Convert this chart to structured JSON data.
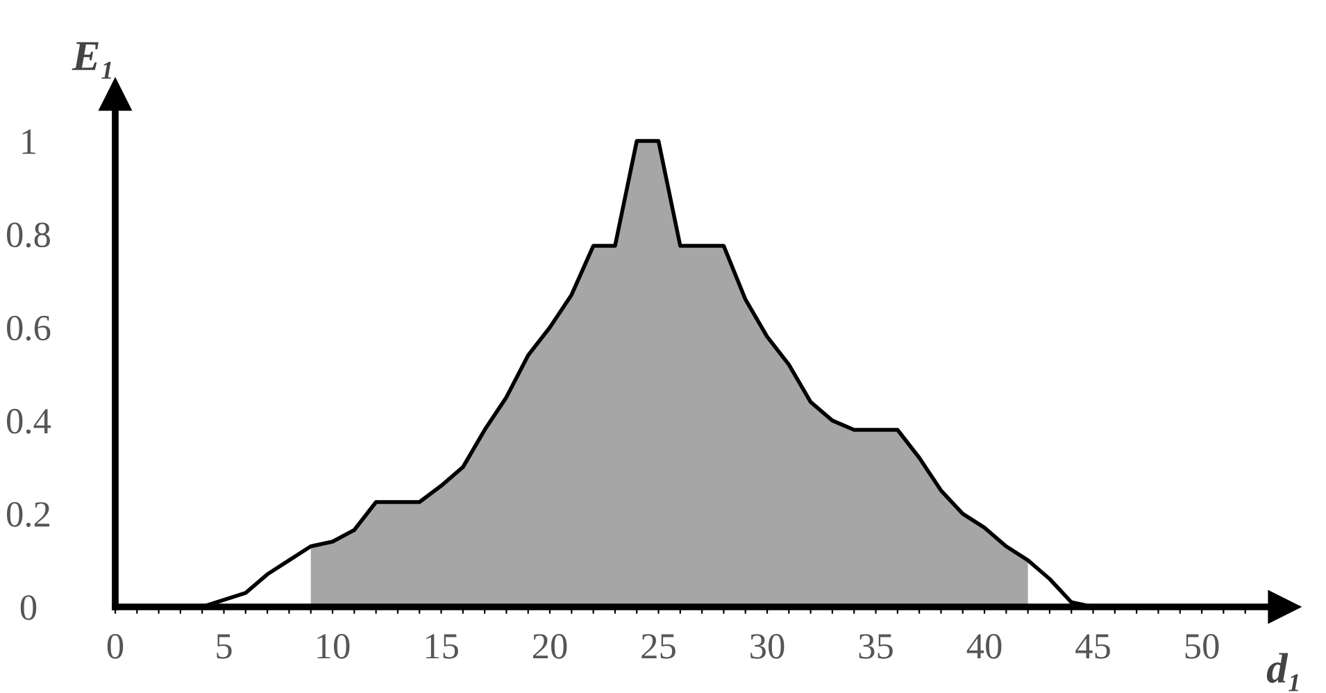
{
  "chart_data": {
    "type": "line",
    "xlabel": "d₁",
    "ylabel": "E₁",
    "series": [
      {
        "type": "area",
        "color": "#a6a6a6",
        "x": [
          9,
          10,
          11,
          12,
          13,
          14,
          15,
          16,
          17,
          18,
          19,
          20,
          21,
          22,
          23,
          24,
          25,
          26,
          27,
          28,
          29,
          30,
          31,
          32,
          33,
          34,
          35,
          36,
          37,
          38,
          39,
          40,
          41,
          42
        ],
        "values": [
          0.13,
          0.14,
          0.165,
          0.225,
          0.225,
          0.225,
          0.26,
          0.3,
          0.38,
          0.45,
          0.54,
          0.6,
          0.67,
          0.775,
          0.775,
          1,
          1,
          0.775,
          0.775,
          0.775,
          0.66,
          0.58,
          0.52,
          0.44,
          0.4,
          0.38,
          0.38,
          0.38,
          0.32,
          0.25,
          0.2,
          0.17,
          0.13,
          0.1
        ]
      },
      {
        "color": "#000000",
        "x": [
          4,
          5,
          6,
          7,
          8,
          9,
          10,
          11,
          12,
          13,
          14,
          15,
          16,
          17,
          18,
          19,
          20,
          21,
          22,
          23,
          24,
          25,
          26,
          27,
          28,
          29,
          30,
          31,
          32,
          33,
          34,
          35,
          36,
          37,
          38,
          39,
          40,
          41,
          42,
          43,
          44,
          45,
          46
        ],
        "values": [
          0,
          0.015,
          0.03,
          0.07,
          0.1,
          0.13,
          0.14,
          0.165,
          0.225,
          0.225,
          0.225,
          0.26,
          0.3,
          0.38,
          0.45,
          0.54,
          0.6,
          0.67,
          0.775,
          0.775,
          1,
          1,
          0.775,
          0.775,
          0.775,
          0.66,
          0.58,
          0.52,
          0.44,
          0.4,
          0.38,
          0.38,
          0.38,
          0.32,
          0.25,
          0.2,
          0.17,
          0.13,
          0.1,
          0.06,
          0.01,
          0,
          0
        ]
      }
    ],
    "xlim": [
      0,
      53.8
    ],
    "ylim": [
      0,
      1.1
    ],
    "xticks": [
      0,
      {
        "value": 1,
        "label": null
      },
      {
        "value": 2,
        "label": null
      },
      {
        "value": 3,
        "label": null
      },
      {
        "value": 4,
        "label": null
      },
      5,
      {
        "value": 6,
        "label": null
      },
      {
        "value": 7,
        "label": null
      },
      {
        "value": 8,
        "label": null
      },
      {
        "value": 9,
        "label": null
      },
      10,
      {
        "value": 11,
        "label": null
      },
      {
        "value": 12,
        "label": null
      },
      {
        "value": 13,
        "label": null
      },
      {
        "value": 14,
        "label": null
      },
      15,
      {
        "value": 16,
        "label": null
      },
      {
        "value": 17,
        "label": null
      },
      {
        "value": 18,
        "label": null
      },
      {
        "value": 19,
        "label": null
      },
      20,
      {
        "value": 21,
        "label": null
      },
      {
        "value": 22,
        "label": null
      },
      {
        "value": 23,
        "label": null
      },
      {
        "value": 24,
        "label": null
      },
      25,
      {
        "value": 26,
        "label": null
      },
      {
        "value": 27,
        "label": null
      },
      {
        "value": 28,
        "label": null
      },
      {
        "value": 29,
        "label": null
      },
      30,
      {
        "value": 31,
        "label": null
      },
      {
        "value": 32,
        "label": null
      },
      {
        "value": 33,
        "label": null
      },
      {
        "value": 34,
        "label": null
      },
      35,
      {
        "value": 36,
        "label": null
      },
      {
        "value": 37,
        "label": null
      },
      {
        "value": 38,
        "label": null
      },
      {
        "value": 39,
        "label": null
      },
      40,
      {
        "value": 41,
        "label": null
      },
      {
        "value": 42,
        "label": null
      },
      {
        "value": 43,
        "label": null
      },
      {
        "value": 44,
        "label": null
      },
      45,
      {
        "value": 46,
        "label": null
      },
      {
        "value": 47,
        "label": null
      },
      {
        "value": 48,
        "label": null
      },
      {
        "value": 49,
        "label": null
      },
      50,
      {
        "value": 51,
        "label": null
      },
      {
        "value": 52,
        "label": null
      }
    ],
    "yticks": [
      0,
      0.2,
      0.4,
      0.6,
      0.8,
      1
    ],
    "grid": false,
    "legend": false,
    "marker": "none",
    "line_style": "solid"
  }
}
